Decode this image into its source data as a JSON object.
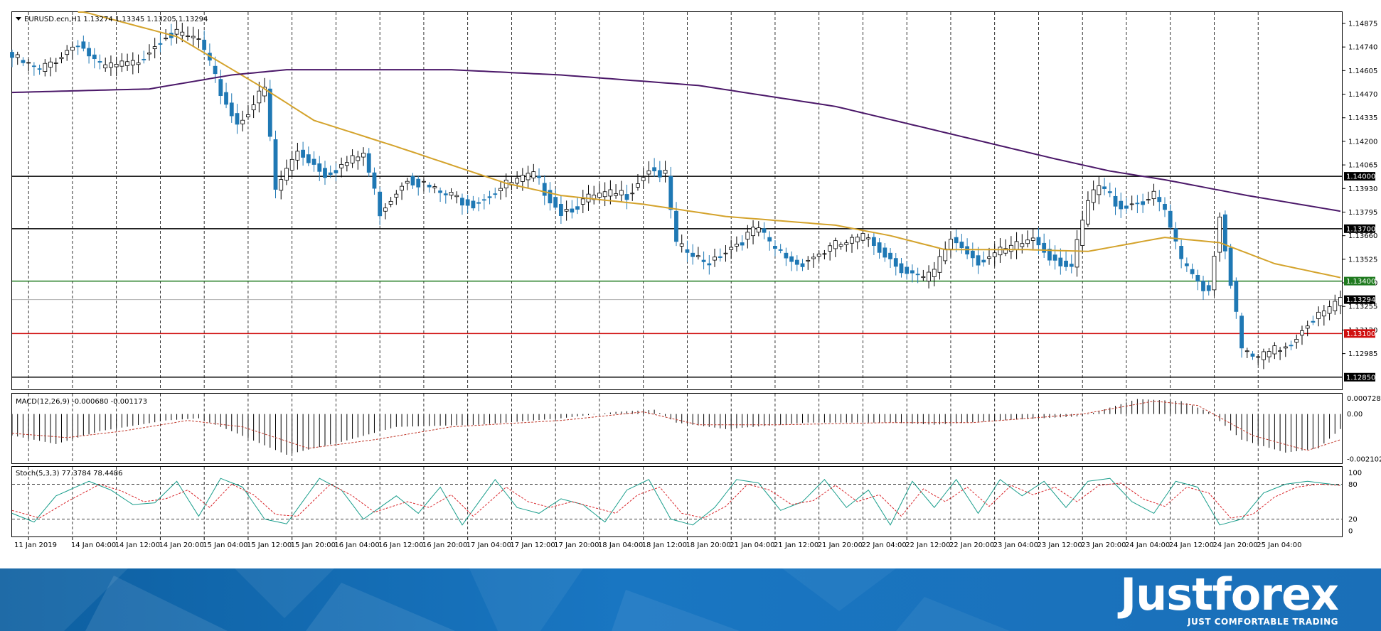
{
  "chart_data": [
    {
      "type": "candlestick",
      "title": "EURUSD.ecn,H1  1.13274 1.13345 1.13205 1.13294",
      "ylim": [
        1.1278,
        1.1494
      ],
      "y_ticks": [
        "1.14875",
        "1.14740",
        "1.14605",
        "1.14470",
        "1.14335",
        "1.14200",
        "1.14065",
        "1.13930",
        "1.13795",
        "1.13660",
        "1.13525",
        "1.13390",
        "1.13255",
        "1.13120",
        "1.12985",
        "1.12850"
      ],
      "x_ticks": [
        "11 Jan 2019",
        "14 Jan 04:00",
        "14 Jan 12:00",
        "14 Jan 20:00",
        "15 Jan 04:00",
        "15 Jan 12:00",
        "15 Jan 20:00",
        "16 Jan 04:00",
        "16 Jan 12:00",
        "16 Jan 20:00",
        "17 Jan 04:00",
        "17 Jan 12:00",
        "17 Jan 20:00",
        "18 Jan 04:00",
        "18 Jan 12:00",
        "18 Jan 20:00",
        "21 Jan 04:00",
        "21 Jan 12:00",
        "21 Jan 20:00",
        "22 Jan 04:00",
        "22 Jan 12:00",
        "22 Jan 20:00",
        "23 Jan 04:00",
        "23 Jan 12:00",
        "23 Jan 20:00",
        "24 Jan 04:00",
        "24 Jan 12:00",
        "24 Jan 20:00",
        "25 Jan 04:00"
      ],
      "close_anchors": [
        [
          0,
          1.1468
        ],
        [
          5,
          1.146
        ],
        [
          12,
          1.1477
        ],
        [
          16,
          1.1462
        ],
        [
          22,
          1.1464
        ],
        [
          28,
          1.1482
        ],
        [
          34,
          1.1478
        ],
        [
          38,
          1.1448
        ],
        [
          41,
          1.143
        ],
        [
          46,
          1.145
        ],
        [
          48,
          1.1392
        ],
        [
          52,
          1.1415
        ],
        [
          57,
          1.1402
        ],
        [
          62,
          1.1409
        ],
        [
          64,
          1.1413
        ],
        [
          67,
          1.138
        ],
        [
          72,
          1.14
        ],
        [
          78,
          1.139
        ],
        [
          84,
          1.1385
        ],
        [
          90,
          1.1395
        ],
        [
          95,
          1.14
        ],
        [
          100,
          1.138
        ],
        [
          106,
          1.1388
        ],
        [
          112,
          1.139
        ],
        [
          116,
          1.1405
        ],
        [
          119,
          1.14
        ],
        [
          121,
          1.136
        ],
        [
          126,
          1.135
        ],
        [
          131,
          1.136
        ],
        [
          136,
          1.137
        ],
        [
          138,
          1.136
        ],
        [
          143,
          1.135
        ],
        [
          150,
          1.136
        ],
        [
          156,
          1.1365
        ],
        [
          161,
          1.135
        ],
        [
          166,
          1.134
        ],
        [
          168,
          1.1345
        ],
        [
          171,
          1.1365
        ],
        [
          176,
          1.1352
        ],
        [
          182,
          1.1358
        ],
        [
          186,
          1.1365
        ],
        [
          189,
          1.1355
        ],
        [
          193,
          1.1348
        ],
        [
          196,
          1.1385
        ],
        [
          198,
          1.1394
        ],
        [
          202,
          1.1383
        ],
        [
          208,
          1.1388
        ],
        [
          210,
          1.138
        ],
        [
          213,
          1.135
        ],
        [
          216,
          1.134
        ],
        [
          218,
          1.1335
        ],
        [
          220,
          1.1378
        ],
        [
          222,
          1.134
        ],
        [
          224,
          1.13
        ],
        [
          227,
          1.1295
        ],
        [
          230,
          1.13
        ],
        [
          233,
          1.1305
        ],
        [
          236,
          1.1317
        ],
        [
          240,
          1.1323
        ],
        [
          242,
          1.1329
        ]
      ],
      "ema50_anchors": [
        [
          12,
          1.1495
        ],
        [
          30,
          1.148
        ],
        [
          45,
          1.1452
        ],
        [
          55,
          1.1432
        ],
        [
          70,
          1.1417
        ],
        [
          90,
          1.1396
        ],
        [
          100,
          1.1389
        ],
        [
          115,
          1.1384
        ],
        [
          130,
          1.1377
        ],
        [
          150,
          1.1372
        ],
        [
          160,
          1.1366
        ],
        [
          170,
          1.1358
        ],
        [
          185,
          1.1358
        ],
        [
          196,
          1.1357
        ],
        [
          210,
          1.1365
        ],
        [
          220,
          1.1362
        ],
        [
          230,
          1.135
        ],
        [
          242,
          1.1342
        ]
      ],
      "ema200_anchors": [
        [
          0,
          1.1448
        ],
        [
          25,
          1.145
        ],
        [
          40,
          1.1458
        ],
        [
          50,
          1.1461
        ],
        [
          80,
          1.1461
        ],
        [
          100,
          1.1458
        ],
        [
          125,
          1.1452
        ],
        [
          150,
          1.144
        ],
        [
          170,
          1.1425
        ],
        [
          190,
          1.141
        ],
        [
          200,
          1.1403
        ],
        [
          210,
          1.1398
        ],
        [
          225,
          1.1389
        ],
        [
          242,
          1.138
        ]
      ],
      "levels": [
        {
          "value": 1.14,
          "label": "1.14000",
          "color": "#000000"
        },
        {
          "value": 1.137,
          "label": "1.13700",
          "color": "#000000"
        },
        {
          "value": 1.134,
          "label": "1.13400",
          "color": "#1f7a1f"
        },
        {
          "value": 1.131,
          "label": "1.13100",
          "color": "#d01010"
        },
        {
          "value": 1.1285,
          "label": "1.12850",
          "color": "#000000"
        }
      ],
      "current_price": {
        "value": 1.13294,
        "label": "1.13294"
      },
      "candle_up_color": "#ffffff",
      "candle_down_color": "#1f78b4",
      "ema50_color": "#d4a32c",
      "ema200_color": "#4b1869",
      "grid": "vertical-dashed"
    },
    {
      "type": "histogram",
      "title": "MACD(12,26,9) -0.000680 -0.001173",
      "ylim": [
        -0.0023,
        0.00095
      ],
      "y_ticks": [
        "0.000728",
        "0.00",
        "-0.002102"
      ],
      "hist_anchors": [
        [
          0,
          -0.001
        ],
        [
          8,
          -0.0014
        ],
        [
          16,
          -0.0008
        ],
        [
          28,
          -0.0003
        ],
        [
          34,
          -0.0002
        ],
        [
          40,
          -0.0008
        ],
        [
          50,
          -0.0019
        ],
        [
          60,
          -0.0013
        ],
        [
          70,
          -0.0006
        ],
        [
          85,
          -0.0005
        ],
        [
          100,
          -0.0002
        ],
        [
          110,
          0.0001
        ],
        [
          117,
          0.0002
        ],
        [
          121,
          -0.0004
        ],
        [
          130,
          -0.0007
        ],
        [
          145,
          -0.0004
        ],
        [
          160,
          -0.0004
        ],
        [
          168,
          -0.0005
        ],
        [
          180,
          -0.0003
        ],
        [
          195,
          -0.0001
        ],
        [
          205,
          0.0007
        ],
        [
          213,
          0.0006
        ],
        [
          218,
          0.0001
        ],
        [
          224,
          -0.0012
        ],
        [
          232,
          -0.0018
        ],
        [
          238,
          -0.0016
        ],
        [
          242,
          -0.0007
        ]
      ],
      "signal_anchors": [
        [
          0,
          -0.0009
        ],
        [
          10,
          -0.0011
        ],
        [
          20,
          -0.0008
        ],
        [
          32,
          -0.0003
        ],
        [
          42,
          -0.0006
        ],
        [
          54,
          -0.0016
        ],
        [
          66,
          -0.0012
        ],
        [
          80,
          -0.0006
        ],
        [
          100,
          -0.0003
        ],
        [
          115,
          0.0001
        ],
        [
          125,
          -0.0005
        ],
        [
          140,
          -0.0005
        ],
        [
          160,
          -0.0004
        ],
        [
          175,
          -0.0004
        ],
        [
          195,
          0.0
        ],
        [
          208,
          0.0006
        ],
        [
          216,
          0.0004
        ],
        [
          226,
          -0.001
        ],
        [
          236,
          -0.0017
        ],
        [
          242,
          -0.0012
        ]
      ],
      "hist_color": "#000000",
      "signal_color": "#c0392b"
    },
    {
      "type": "line",
      "title": "Stoch(5,3,3) 77.3784 78.4486",
      "ylim": [
        0,
        100
      ],
      "y_ticks": [
        "100",
        "80",
        "20",
        "0"
      ],
      "k_anchors": [
        [
          0,
          30
        ],
        [
          4,
          15
        ],
        [
          8,
          60
        ],
        [
          14,
          85
        ],
        [
          18,
          70
        ],
        [
          22,
          45
        ],
        [
          26,
          48
        ],
        [
          30,
          85
        ],
        [
          34,
          25
        ],
        [
          38,
          90
        ],
        [
          42,
          75
        ],
        [
          46,
          20
        ],
        [
          50,
          12
        ],
        [
          56,
          90
        ],
        [
          60,
          70
        ],
        [
          64,
          20
        ],
        [
          70,
          60
        ],
        [
          74,
          30
        ],
        [
          78,
          75
        ],
        [
          82,
          10
        ],
        [
          88,
          88
        ],
        [
          92,
          40
        ],
        [
          96,
          30
        ],
        [
          100,
          55
        ],
        [
          104,
          45
        ],
        [
          108,
          15
        ],
        [
          112,
          70
        ],
        [
          116,
          88
        ],
        [
          120,
          20
        ],
        [
          124,
          10
        ],
        [
          128,
          40
        ],
        [
          132,
          88
        ],
        [
          136,
          82
        ],
        [
          140,
          35
        ],
        [
          144,
          50
        ],
        [
          148,
          88
        ],
        [
          152,
          40
        ],
        [
          156,
          70
        ],
        [
          160,
          10
        ],
        [
          164,
          85
        ],
        [
          168,
          40
        ],
        [
          172,
          88
        ],
        [
          176,
          30
        ],
        [
          180,
          88
        ],
        [
          184,
          60
        ],
        [
          188,
          85
        ],
        [
          192,
          40
        ],
        [
          196,
          85
        ],
        [
          200,
          90
        ],
        [
          204,
          50
        ],
        [
          208,
          30
        ],
        [
          212,
          85
        ],
        [
          216,
          75
        ],
        [
          220,
          10
        ],
        [
          224,
          20
        ],
        [
          228,
          65
        ],
        [
          232,
          80
        ],
        [
          236,
          85
        ],
        [
          242,
          78
        ]
      ],
      "d_anchors": [
        [
          0,
          35
        ],
        [
          5,
          22
        ],
        [
          10,
          50
        ],
        [
          16,
          80
        ],
        [
          20,
          68
        ],
        [
          24,
          50
        ],
        [
          28,
          55
        ],
        [
          32,
          70
        ],
        [
          36,
          40
        ],
        [
          40,
          80
        ],
        [
          44,
          62
        ],
        [
          48,
          28
        ],
        [
          52,
          25
        ],
        [
          58,
          80
        ],
        [
          62,
          60
        ],
        [
          66,
          32
        ],
        [
          72,
          50
        ],
        [
          76,
          40
        ],
        [
          80,
          62
        ],
        [
          84,
          25
        ],
        [
          90,
          75
        ],
        [
          94,
          50
        ],
        [
          98,
          40
        ],
        [
          102,
          50
        ],
        [
          106,
          40
        ],
        [
          110,
          30
        ],
        [
          114,
          62
        ],
        [
          118,
          75
        ],
        [
          122,
          30
        ],
        [
          126,
          22
        ],
        [
          130,
          42
        ],
        [
          134,
          80
        ],
        [
          138,
          70
        ],
        [
          142,
          45
        ],
        [
          146,
          52
        ],
        [
          150,
          78
        ],
        [
          154,
          50
        ],
        [
          158,
          62
        ],
        [
          162,
          25
        ],
        [
          166,
          72
        ],
        [
          170,
          50
        ],
        [
          174,
          75
        ],
        [
          178,
          42
        ],
        [
          182,
          78
        ],
        [
          186,
          62
        ],
        [
          190,
          75
        ],
        [
          194,
          50
        ],
        [
          198,
          78
        ],
        [
          202,
          82
        ],
        [
          206,
          55
        ],
        [
          210,
          42
        ],
        [
          214,
          75
        ],
        [
          218,
          65
        ],
        [
          222,
          22
        ],
        [
          226,
          28
        ],
        [
          230,
          58
        ],
        [
          234,
          75
        ],
        [
          238,
          80
        ],
        [
          242,
          78
        ]
      ],
      "levels": [
        80,
        20
      ],
      "k_color": "#1a9e8c",
      "d_color": "#d9262b"
    }
  ],
  "brand": {
    "name": "Justforex",
    "tagline": "JUST COMFORTABLE TRADING"
  }
}
